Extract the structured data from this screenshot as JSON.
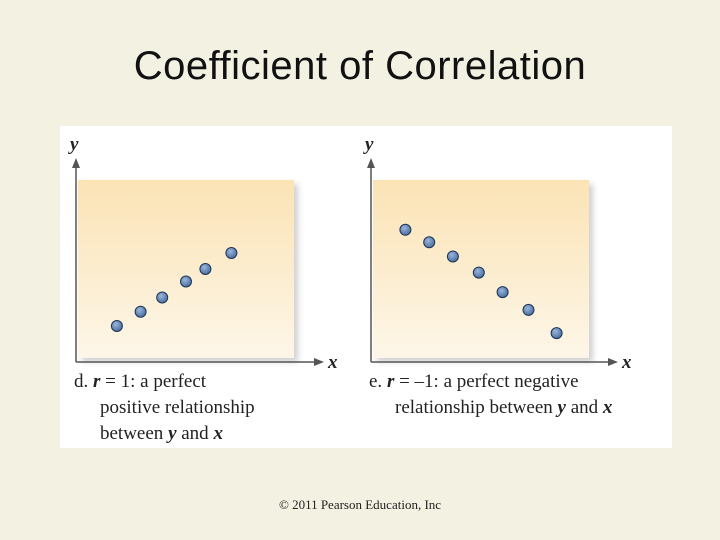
{
  "slide": {
    "title": "Coefficient of Correlation",
    "footer": "© 2011 Pearson Education, Inc"
  },
  "colors": {
    "background": "#f3f1e1",
    "plot_gradient_top": "#fbe3b5",
    "plot_gradient_bottom": "#fdf6e8",
    "point_fill": "#4a6fa0",
    "axis": "#555555"
  },
  "chart_data": [
    {
      "type": "scatter",
      "panel_letter": "d.",
      "caption_r": "r",
      "caption_eq": " = 1: a perfect",
      "caption_line2": "positive relationship",
      "caption_line3_pre": "between ",
      "caption_y": "y",
      "caption_and": " and ",
      "caption_x": "x",
      "xlabel": "x",
      "ylabel": "y",
      "xlim": [
        0,
        10
      ],
      "ylim": [
        0,
        10
      ],
      "grid": false,
      "points": [
        {
          "x": 1.8,
          "y": 1.8
        },
        {
          "x": 2.9,
          "y": 2.6
        },
        {
          "x": 3.9,
          "y": 3.4
        },
        {
          "x": 5.0,
          "y": 4.3
        },
        {
          "x": 5.9,
          "y": 5.0
        },
        {
          "x": 7.1,
          "y": 5.9
        }
      ]
    },
    {
      "type": "scatter",
      "panel_letter": "e.",
      "caption_r": "r",
      "caption_eq": " = –1: a perfect negative",
      "caption_line2_pre": "relationship between ",
      "caption_y": "y",
      "caption_and": " and ",
      "caption_x": "x",
      "xlabel": "x",
      "ylabel": "y",
      "xlim": [
        0,
        10
      ],
      "ylim": [
        0,
        10
      ],
      "grid": false,
      "points": [
        {
          "x": 1.5,
          "y": 7.2
        },
        {
          "x": 2.6,
          "y": 6.5
        },
        {
          "x": 3.7,
          "y": 5.7
        },
        {
          "x": 4.9,
          "y": 4.8
        },
        {
          "x": 6.0,
          "y": 3.7
        },
        {
          "x": 7.2,
          "y": 2.7
        },
        {
          "x": 8.5,
          "y": 1.4
        }
      ]
    }
  ]
}
